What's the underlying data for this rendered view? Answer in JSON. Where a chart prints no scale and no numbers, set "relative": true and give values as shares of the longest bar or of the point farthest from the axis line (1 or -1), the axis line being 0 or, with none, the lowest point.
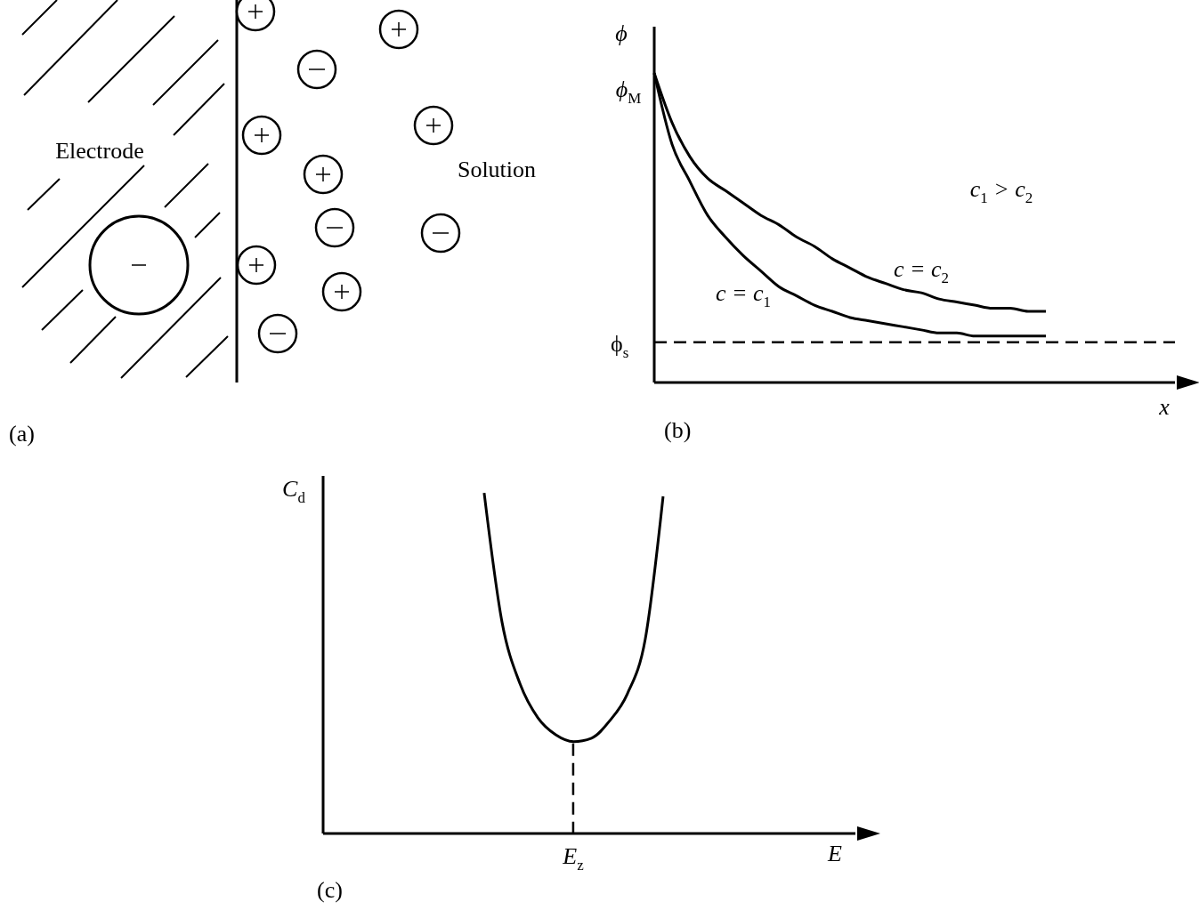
{
  "chart_data": [
    {
      "type": "other",
      "title": "(a)",
      "annotations": [
        "Electrode",
        "Solution"
      ]
    },
    {
      "type": "line",
      "title": "(b)",
      "xlabel": "x",
      "ylabel": "ϕ",
      "relative": true,
      "marker": "none",
      "categories": [
        null,
        null,
        null,
        null,
        null,
        null,
        null,
        null,
        null,
        null,
        null,
        null,
        null,
        null,
        null,
        null,
        null,
        null,
        null,
        null,
        null,
        null,
        null,
        null,
        null,
        null,
        null,
        null,
        null
      ],
      "series": [
        {
          "name": "c = c$_{1}$",
          "color": "#000000",
          "line_style": "solid",
          "values": [
            1,
            0.77,
            0.65,
            0.54,
            0.47,
            0.41,
            0.36,
            0.31,
            0.28,
            0.25,
            0.23,
            0.21,
            0.2,
            0.19,
            0.18,
            0.17,
            0.16,
            0.16,
            0.15,
            0.15,
            0.15,
            0.15,
            0.15,
            null,
            null,
            null,
            null,
            null,
            null
          ]
        },
        {
          "name": "c = c$_{2}$",
          "color": "#000000",
          "line_style": "solid",
          "values": [
            1,
            0.84,
            0.73,
            0.66,
            0.62,
            0.58,
            0.54,
            0.51,
            0.47,
            0.44,
            0.4,
            0.37,
            0.34,
            0.32,
            0.3,
            0.29,
            0.27,
            0.26,
            0.25,
            0.24,
            0.24,
            0.23,
            0.23,
            null,
            null,
            null,
            null,
            null,
            null
          ]
        }
      ],
      "ref_lines": [
        {
          "axis": "y",
          "value": 0.13,
          "label": "ϕ$_{s}$",
          "line_style": "dashed",
          "color": "#000000"
        }
      ],
      "annotations": [
        "ϕ$_{M}$",
        "c$_{1}$ > c$_{2}$"
      ]
    },
    {
      "type": "line",
      "title": "(c)",
      "xlabel": "E",
      "ylabel": "C$_{d}$",
      "relative": true,
      "marker": "none",
      "categories": [
        null,
        null,
        null,
        null,
        null,
        null,
        null,
        null,
        null,
        null,
        null,
        null,
        null,
        null,
        null,
        null,
        null,
        null,
        null,
        null,
        null,
        null,
        null,
        null,
        null,
        null,
        null,
        null,
        null,
        null
      ],
      "series": [
        {
          "color": "#000000",
          "line_style": "solid",
          "values": [
            null,
            null,
            null,
            null,
            null,
            null,
            null,
            null,
            null,
            1,
            0.62,
            0.44,
            0.34,
            0.29,
            0.27,
            0.28,
            0.33,
            0.41,
            0.57,
            0.99,
            null,
            null,
            null,
            null,
            null,
            null,
            null,
            null,
            null,
            null
          ]
        }
      ],
      "annotations": [
        "E$_{z}$"
      ]
    }
  ]
}
